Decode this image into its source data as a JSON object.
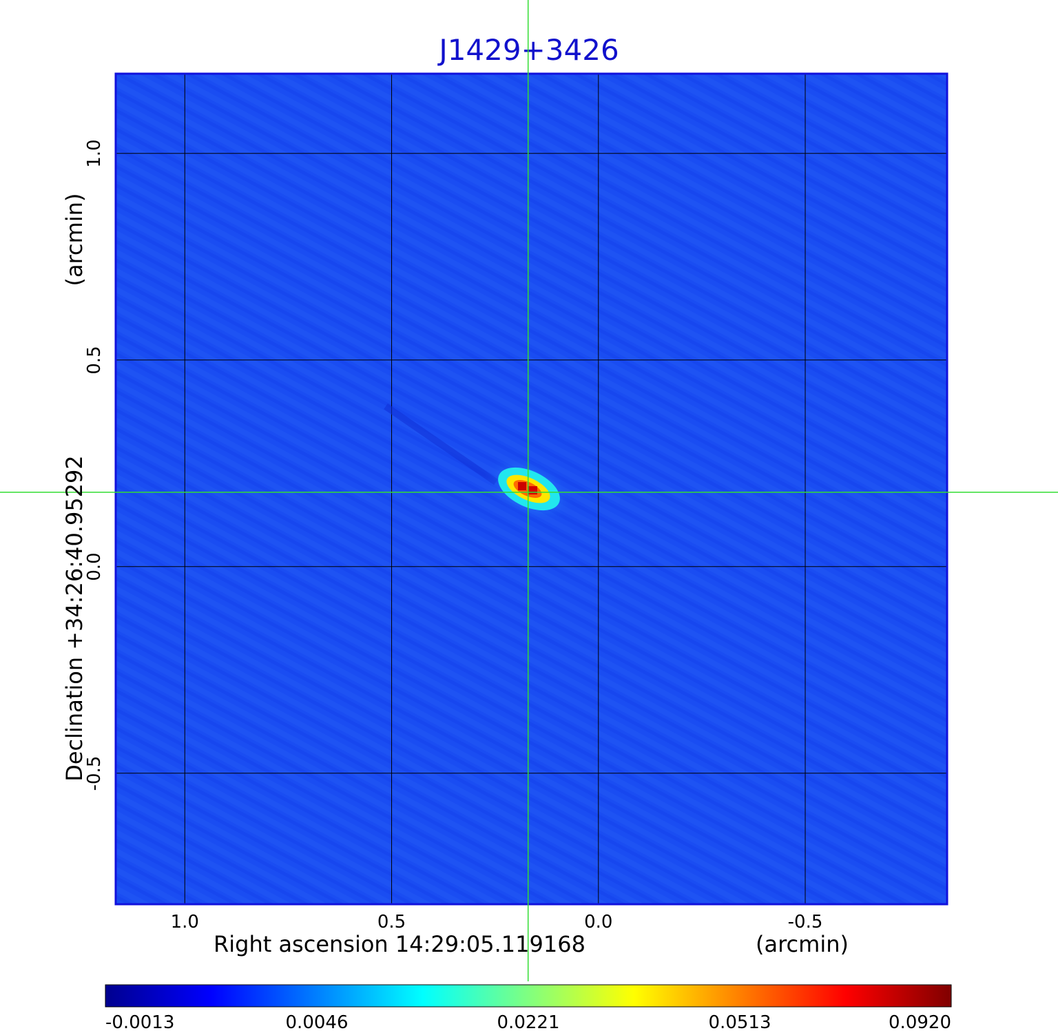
{
  "chart_data": {
    "type": "heatmap",
    "title": "J1429+3426",
    "xlabel": "Right ascension  14:29:05.119168",
    "xunit": "(arcmin)",
    "ylabel": "Declination  +34:26:40.95292",
    "yunit": "(arcmin)",
    "x_axis_reversed": true,
    "xlim": [
      1.167,
      -0.843
    ],
    "ylim": [
      -0.817,
      1.193
    ],
    "x_ticks": [
      1.0,
      0.5,
      0.0,
      -0.5
    ],
    "x_tick_labels": [
      "1.0",
      "0.5",
      "0.0",
      "-0.5"
    ],
    "y_ticks": [
      1.0,
      0.5,
      0.0,
      -0.5
    ],
    "y_tick_labels": [
      "1.0",
      "0.5",
      "0.0",
      "-0.5"
    ],
    "grid": true,
    "colormap": "jet",
    "colorbar": {
      "orientation": "horizontal",
      "placement": "bottom",
      "tick_labels": [
        "-0.0013",
        "0.0046",
        "0.0221",
        "0.0513",
        "0.0920"
      ]
    },
    "background_level": 0.002,
    "peak": {
      "x": 0.17,
      "y": 0.19,
      "value": 0.092
    },
    "crosshair": {
      "x": 0.17,
      "y": 0.18,
      "color": "#33dd33"
    },
    "colors": {
      "title": "#1111cc",
      "frame": "#1111dd",
      "grid": "#000000"
    }
  }
}
